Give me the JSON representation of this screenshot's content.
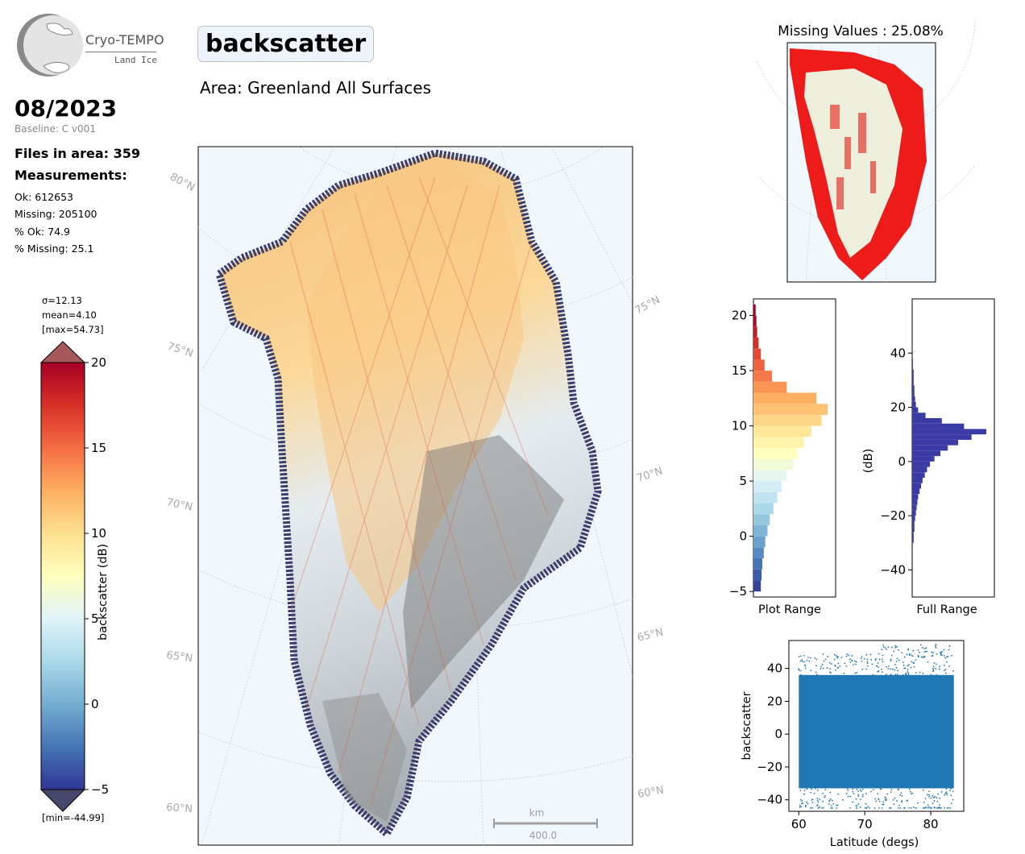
{
  "logo": {
    "title": "Cryo-TEMPO",
    "subtitle": "Land Ice"
  },
  "header": {
    "date": "08/2023",
    "baseline": "Baseline: C v001",
    "files_in_area": "Files in area: 359",
    "measurements_title": "Measurements:",
    "stats": [
      "Ok: 612653",
      "Missing: 205100",
      "% Ok: 74.9",
      "% Missing: 25.1"
    ]
  },
  "title": {
    "parameter": "backscatter",
    "area": "Area: Greenland All Surfaces"
  },
  "colorbar": {
    "sigma": "σ=12.13",
    "mean": "mean=4.10",
    "max": "[max=54.73]",
    "min": "[min=-44.99]",
    "label": "backscatter (dB)",
    "ticks": [
      "20",
      "15",
      "10",
      "5",
      "0",
      "−5"
    ],
    "colormap": "RdYlBu_r",
    "range": [
      -5,
      20
    ]
  },
  "map": {
    "lat_labels_left": [
      "80°N",
      "75°N",
      "70°N",
      "65°N",
      "60°N"
    ],
    "lat_labels_right": [
      "75°N",
      "70°N",
      "65°N",
      "60°N"
    ],
    "scalebar_unit": "km",
    "scalebar_value": "400.0",
    "land_color": "#eeeedd",
    "ocean_color": "#f0f7fd"
  },
  "missing_map": {
    "title": "Missing Values : 25.08%",
    "missing_color": "#ff0000"
  },
  "chart_data": [
    {
      "type": "bar",
      "orientation": "horizontal",
      "name": "plot-range-histogram",
      "xlabel": "Plot Range",
      "ylim": [
        -5.5,
        21.5
      ],
      "yticks": [
        "20",
        "15",
        "10",
        "5",
        "0",
        "−5"
      ],
      "bins": [
        -5,
        -4,
        -3,
        -2,
        -1,
        0,
        1,
        2,
        3,
        4,
        5,
        6,
        7,
        8,
        9,
        10,
        11,
        12,
        13,
        14,
        15,
        16,
        17,
        18,
        19,
        20
      ],
      "counts": [
        0.1,
        0.11,
        0.12,
        0.14,
        0.16,
        0.19,
        0.22,
        0.27,
        0.32,
        0.38,
        0.45,
        0.53,
        0.6,
        0.68,
        0.78,
        0.92,
        1.0,
        0.85,
        0.45,
        0.25,
        0.15,
        0.1,
        0.07,
        0.05,
        0.04,
        0.03
      ],
      "colormap": "RdYlBu_r"
    },
    {
      "type": "bar",
      "orientation": "horizontal",
      "name": "full-range-histogram",
      "xlabel": "Full Range",
      "ylabel": "(dB)",
      "ylim": [
        -50,
        60
      ],
      "yticks": [
        "40",
        "20",
        "0",
        "−20",
        "−40"
      ],
      "bins": [
        -30,
        -28,
        -26,
        -24,
        -22,
        -20,
        -18,
        -16,
        -14,
        -12,
        -10,
        -8,
        -6,
        -4,
        -2,
        0,
        2,
        4,
        6,
        8,
        10,
        12,
        14,
        16,
        18,
        20,
        22,
        24,
        26,
        28,
        30,
        32,
        34,
        36
      ],
      "counts": [
        0.02,
        0.02,
        0.03,
        0.03,
        0.04,
        0.05,
        0.06,
        0.07,
        0.08,
        0.1,
        0.12,
        0.14,
        0.17,
        0.2,
        0.24,
        0.3,
        0.38,
        0.48,
        0.62,
        0.8,
        1.0,
        0.7,
        0.4,
        0.18,
        0.08,
        0.05,
        0.04,
        0.03,
        0.03,
        0.02,
        0.02,
        0.02,
        0.01,
        0.01
      ],
      "color": "#3b3ba6"
    },
    {
      "type": "scatter",
      "name": "latitude-scatter",
      "xlabel": "Latitude (degs)",
      "ylabel": "backscatter",
      "xlim": [
        58.5,
        85
      ],
      "ylim": [
        -47,
        57
      ],
      "xticks": [
        "60",
        "70",
        "80"
      ],
      "yticks": [
        "40",
        "20",
        "0",
        "−20",
        "−40"
      ],
      "x_range": [
        60,
        83.5
      ],
      "y_range": [
        -44.99,
        54.73
      ],
      "color": "#1f77b4"
    }
  ]
}
